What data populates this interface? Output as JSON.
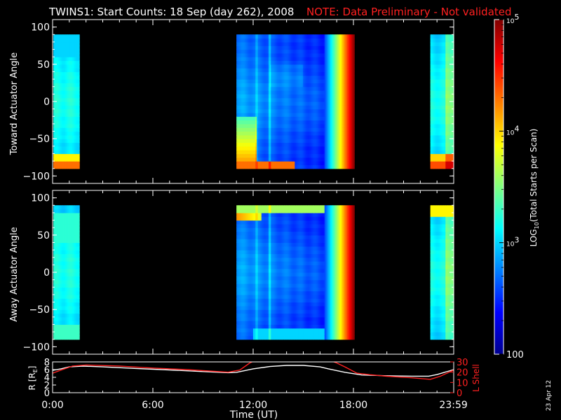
{
  "title": {
    "main": "TWINS1: Start Counts: 18 Sep (day 262), 2008",
    "note": "NOTE: Data Preliminary - Not validated",
    "note_color": "#ff2020"
  },
  "stamp": "23 Apr 12",
  "chart_data": [
    {
      "type": "heatmap",
      "name": "toward-panel",
      "ylabel": "Toward Actuator Angle",
      "ylim": [
        -110,
        110
      ],
      "yticks": [
        100,
        50,
        0,
        -50,
        -100
      ],
      "xlim": [
        0,
        24
      ],
      "angle_range": [
        -90,
        90
      ],
      "data_blocks": [
        {
          "start_ut": 0.05,
          "end_ut": 1.6
        },
        {
          "start_ut": 11.0,
          "end_ut": 18.05
        },
        {
          "start_ut": 22.6,
          "end_ut": 24.0
        }
      ],
      "value_scale": "log10",
      "clim": [
        100,
        100000
      ]
    },
    {
      "type": "heatmap",
      "name": "away-panel",
      "ylabel": "Away Actuator Angle",
      "ylim": [
        -110,
        110
      ],
      "yticks": [
        100,
        50,
        0,
        -50,
        -100
      ],
      "xlim": [
        0,
        24
      ],
      "angle_range": [
        -90,
        90
      ],
      "data_blocks": [
        {
          "start_ut": 0.05,
          "end_ut": 1.6
        },
        {
          "start_ut": 11.0,
          "end_ut": 18.05
        },
        {
          "start_ut": 22.6,
          "end_ut": 24.0
        }
      ],
      "value_scale": "log10",
      "clim": [
        100,
        100000
      ]
    },
    {
      "type": "line",
      "name": "orbit-panel",
      "xlabel": "Time (UT)",
      "xlim": [
        0,
        24
      ],
      "xticks": [
        0,
        6,
        12,
        18,
        23.983
      ],
      "xticklabels": [
        "0:00",
        "6:00",
        "12:00",
        "18:00",
        "23:59"
      ],
      "left_axis": {
        "label": "R [RE]",
        "label_main": "R [R",
        "label_sub": "E",
        "label_end": "]",
        "ylim": [
          0,
          8
        ],
        "yticks": [
          0,
          2,
          4,
          6,
          8
        ]
      },
      "right_axis": {
        "label": "L Shell",
        "ylim": [
          0,
          30
        ],
        "yticks": [
          0,
          10,
          20,
          30
        ],
        "color": "#ff2020"
      },
      "series": [
        {
          "name": "R",
          "axis": "left",
          "color": "#ffffff",
          "x": [
            0,
            0.5,
            1.0,
            1.8,
            3,
            5,
            7,
            9,
            10.5,
            11,
            12,
            13,
            14,
            15,
            16,
            16.5,
            17.5,
            18.5,
            20,
            21.5,
            22.5,
            23,
            24
          ],
          "y": [
            5.8,
            6.2,
            6.7,
            6.9,
            6.7,
            6.3,
            5.9,
            5.5,
            5.2,
            5.3,
            6.2,
            6.8,
            7.1,
            7.1,
            6.7,
            6.2,
            5.3,
            4.6,
            4.4,
            4.3,
            4.3,
            4.7,
            6.0
          ]
        },
        {
          "name": "L Shell",
          "axis": "right",
          "color": "#ff2020",
          "x": [
            0,
            0.5,
            1.2,
            2,
            4,
            6,
            8,
            10.5,
            11.2,
            11.8,
            12.2,
            16.5,
            17,
            17.5,
            18.2,
            19,
            20,
            21.5,
            22.6,
            23.2,
            24
          ],
          "y": [
            19,
            22,
            26,
            27,
            26,
            24,
            22.5,
            20,
            22,
            29,
            32,
            32,
            29,
            25,
            19,
            17.5,
            16,
            14.5,
            13,
            16,
            22
          ]
        }
      ]
    }
  ],
  "colorbar": {
    "label": "LOG10(Total Starts per Scan)",
    "label_main": "LOG",
    "label_sub": "10",
    "label_end": "(Total Starts per Scan)",
    "ticks": [
      {
        "value": 100,
        "label": "100",
        "kind": "plain"
      },
      {
        "value": 1000,
        "label": "10",
        "sup": "3",
        "kind": "power"
      },
      {
        "value": 10000,
        "label": "10",
        "sup": "4",
        "kind": "power"
      },
      {
        "value": 100000,
        "label": "10",
        "sup": "5",
        "kind": "power"
      }
    ],
    "colors": [
      "#00008f",
      "#0000ff",
      "#0080ff",
      "#00ffff",
      "#80ff80",
      "#ffff00",
      "#ff8000",
      "#ff0000",
      "#800000"
    ]
  }
}
